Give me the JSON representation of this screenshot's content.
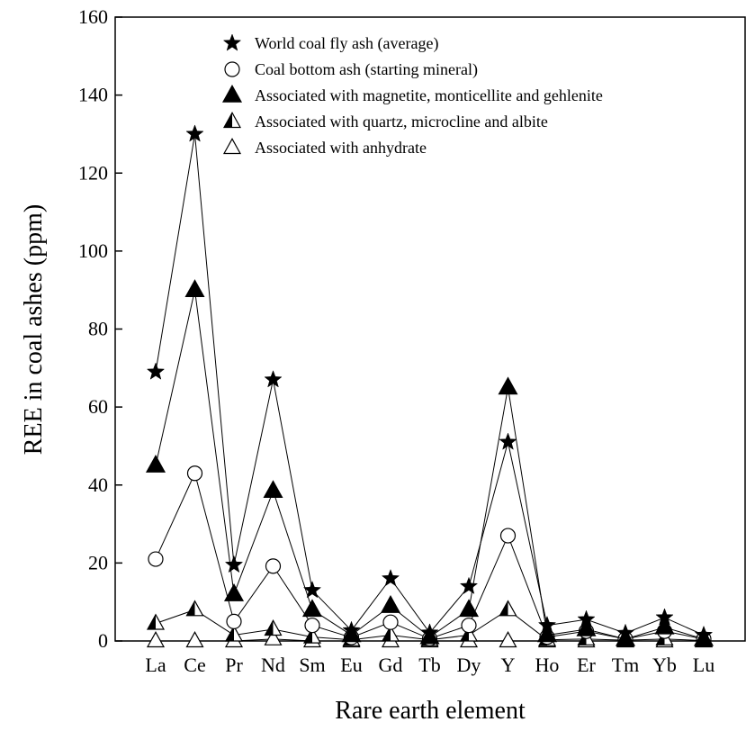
{
  "chart_data": {
    "type": "line",
    "xlabel": "Rare earth element",
    "ylabel": "REE in coal ashes (ppm)",
    "ylim": [
      0,
      160
    ],
    "yticks": [
      0,
      20,
      40,
      60,
      80,
      100,
      120,
      140,
      160
    ],
    "categories": [
      "La",
      "Ce",
      "Pr",
      "Nd",
      "Sm",
      "Eu",
      "Gd",
      "Tb",
      "Dy",
      "Y",
      "Ho",
      "Er",
      "Tm",
      "Yb",
      "Lu"
    ],
    "legend_position": "top-right",
    "grid": false,
    "series": [
      {
        "name": "World coal fly ash (average)",
        "marker": "star",
        "values": [
          69,
          130,
          19.5,
          67,
          13,
          2.7,
          16,
          2.1,
          14,
          51,
          4,
          5.5,
          2,
          6,
          1.5
        ]
      },
      {
        "name": "Coal bottom ash (starting mineral)",
        "marker": "circle-open",
        "values": [
          21,
          43,
          5,
          19.2,
          4,
          0.9,
          4.8,
          0.6,
          4,
          27,
          1,
          2.5,
          0.5,
          2.5,
          0.5
        ]
      },
      {
        "name": "Associated with magnetite,  monticellite  and gehlenite",
        "marker": "triangle-filled-large",
        "values": [
          45,
          90,
          12,
          38.5,
          8,
          1.5,
          9,
          1,
          8,
          65,
          1.5,
          3,
          0.5,
          3.5,
          0.5
        ]
      },
      {
        "name": "Associated with quartz, microcline and albite",
        "marker": "triangle-half",
        "values": [
          4.5,
          8,
          1.5,
          3,
          1,
          0.3,
          1.5,
          0.3,
          1.5,
          8,
          0.3,
          0.5,
          0.2,
          0.5,
          0.1
        ]
      },
      {
        "name": "Associated with anhydrate",
        "marker": "triangle-open",
        "values": [
          0,
          0,
          0,
          0.5,
          0,
          0,
          0,
          0,
          0,
          0,
          0,
          0,
          0,
          0,
          0
        ]
      }
    ]
  }
}
